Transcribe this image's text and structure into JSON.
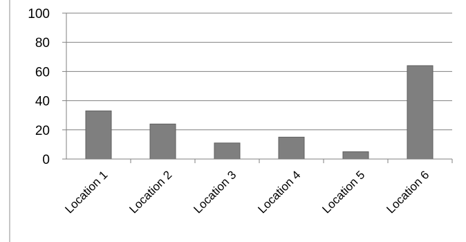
{
  "chart_data": {
    "type": "bar",
    "categories": [
      "Location 1",
      "Location 2",
      "Location 3",
      "Location 4",
      "Location 5",
      "Location 6"
    ],
    "values": [
      33,
      24,
      11,
      15,
      5,
      64
    ],
    "title": "",
    "xlabel": "",
    "ylabel": "",
    "ylim": [
      0,
      100
    ],
    "yticks": [
      0,
      20,
      40,
      60,
      80,
      100
    ],
    "grid": true,
    "legend": "none",
    "bar_color": "#7f7f7f",
    "bar_edge_color": "#5f5f5f",
    "grid_color": "#7f7f7f"
  }
}
